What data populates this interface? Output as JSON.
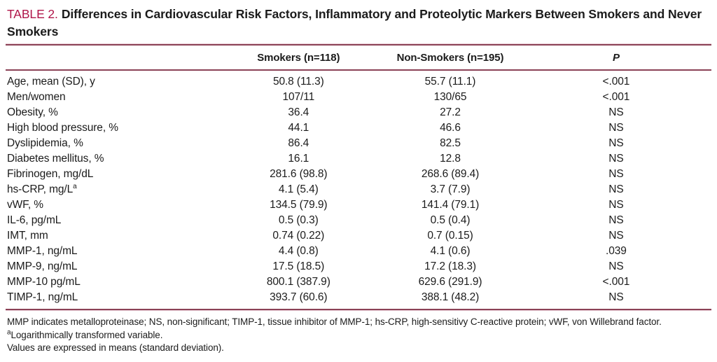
{
  "title": {
    "label": "TABLE 2.",
    "text": "Differences in Cardiovascular Risk Factors, Inflammatory and Proteolytic Markers Between Smokers and Never Smokers"
  },
  "colors": {
    "title_accent": "#b0164a",
    "rule": "#8b4256",
    "text": "#1b1b1b"
  },
  "table": {
    "headers": [
      "",
      "Smokers (n=118)",
      "Non-Smokers (n=195)",
      "P"
    ],
    "rows": [
      {
        "label": "Age, mean (SD), y",
        "smokers": "50.8 (11.3)",
        "non_smokers": "55.7 (11.1)",
        "p": "<.001"
      },
      {
        "label": "Men/women",
        "smokers": "107/11",
        "non_smokers": "130/65",
        "p": "<.001"
      },
      {
        "label": "Obesity, %",
        "smokers": "36.4",
        "non_smokers": "27.2",
        "p": "NS"
      },
      {
        "label": "High blood pressure, %",
        "smokers": "44.1",
        "non_smokers": "46.6",
        "p": "NS"
      },
      {
        "label": "Dyslipidemia, %",
        "smokers": "86.4",
        "non_smokers": "82.5",
        "p": "NS"
      },
      {
        "label": "Diabetes mellitus, %",
        "smokers": "16.1",
        "non_smokers": "12.8",
        "p": "NS"
      },
      {
        "label": "Fibrinogen, mg/dL",
        "smokers": "281.6 (98.8)",
        "non_smokers": "268.6 (89.4)",
        "p": "NS"
      },
      {
        "label": "hs-CRP, mg/L",
        "label_sup": "a",
        "smokers": "4.1 (5.4)",
        "non_smokers": "3.7 (7.9)",
        "p": "NS"
      },
      {
        "label": "vWF, %",
        "smokers": "134.5 (79.9)",
        "non_smokers": "141.4 (79.1)",
        "p": "NS"
      },
      {
        "label": "IL-6, pg/mL",
        "smokers": "0.5 (0.3)",
        "non_smokers": "0.5 (0.4)",
        "p": "NS"
      },
      {
        "label": "IMT, mm",
        "smokers": "0.74 (0.22)",
        "non_smokers": "0.7 (0.15)",
        "p": "NS"
      },
      {
        "label": "MMP-1, ng/mL",
        "smokers": "4.4 (0.8)",
        "non_smokers": "4.1 (0.6)",
        "p": ".039"
      },
      {
        "label": "MMP-9, ng/mL",
        "smokers": "17.5 (18.5)",
        "non_smokers": "17.2 (18.3)",
        "p": "NS"
      },
      {
        "label": "MMP-10 pg/mL",
        "smokers": "800.1 (387.9)",
        "non_smokers": "629.6 (291.9)",
        "p": "<.001"
      },
      {
        "label": "TIMP-1, ng/mL",
        "smokers": "393.7 (60.6)",
        "non_smokers": "388.1 (48.2)",
        "p": "NS"
      }
    ]
  },
  "footnotes": [
    {
      "sup": "",
      "text": "MMP indicates metalloproteinase; NS, non-significant; TIMP-1, tissue inhibitor of MMP-1; hs-CRP, high-sensitivy C-reactive protein; vWF, von Willebrand factor."
    },
    {
      "sup": "a",
      "text": "Logarithmically transformed variable."
    },
    {
      "sup": "",
      "text": "Values are expressed in means (standard deviation)."
    }
  ]
}
